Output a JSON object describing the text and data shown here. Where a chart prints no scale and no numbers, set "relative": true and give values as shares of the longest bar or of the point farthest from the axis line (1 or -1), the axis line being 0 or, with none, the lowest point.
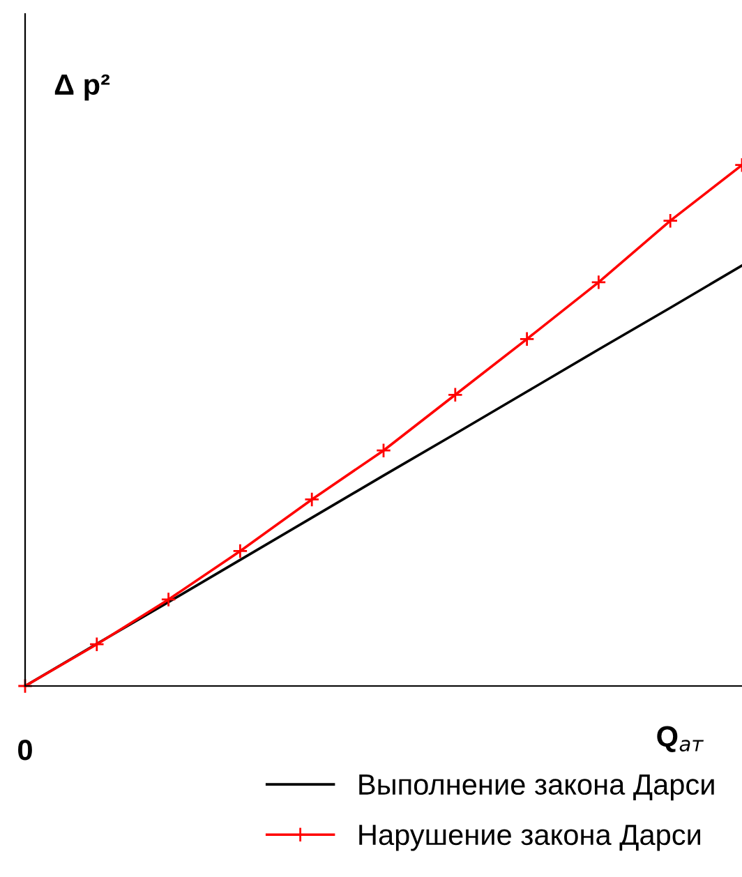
{
  "chart_data": {
    "type": "line",
    "relative": true,
    "ylabel": "Δ p²",
    "xlabel": "Q$_{ат}$",
    "annotations": [
      "0"
    ],
    "categories": [
      null,
      null,
      null,
      null,
      null,
      null,
      null,
      null,
      null,
      null,
      null
    ],
    "series": [
      {
        "name": "Выполнение закона Дарси",
        "color": "#000000",
        "marker": "none",
        "values": [
          0,
          0.081,
          0.161,
          0.242,
          0.323,
          0.404,
          0.484,
          0.565,
          0.646,
          0.726,
          0.807
        ]
      },
      {
        "name": "Нарушение закона Дарси",
        "color": "#ff0000",
        "marker": "cross",
        "values": [
          0,
          0.08,
          0.166,
          0.259,
          0.358,
          0.452,
          0.559,
          0.666,
          0.775,
          0.893,
          1
        ]
      }
    ],
    "legend": "bottom",
    "grid": false,
    "line_style": "solid"
  }
}
